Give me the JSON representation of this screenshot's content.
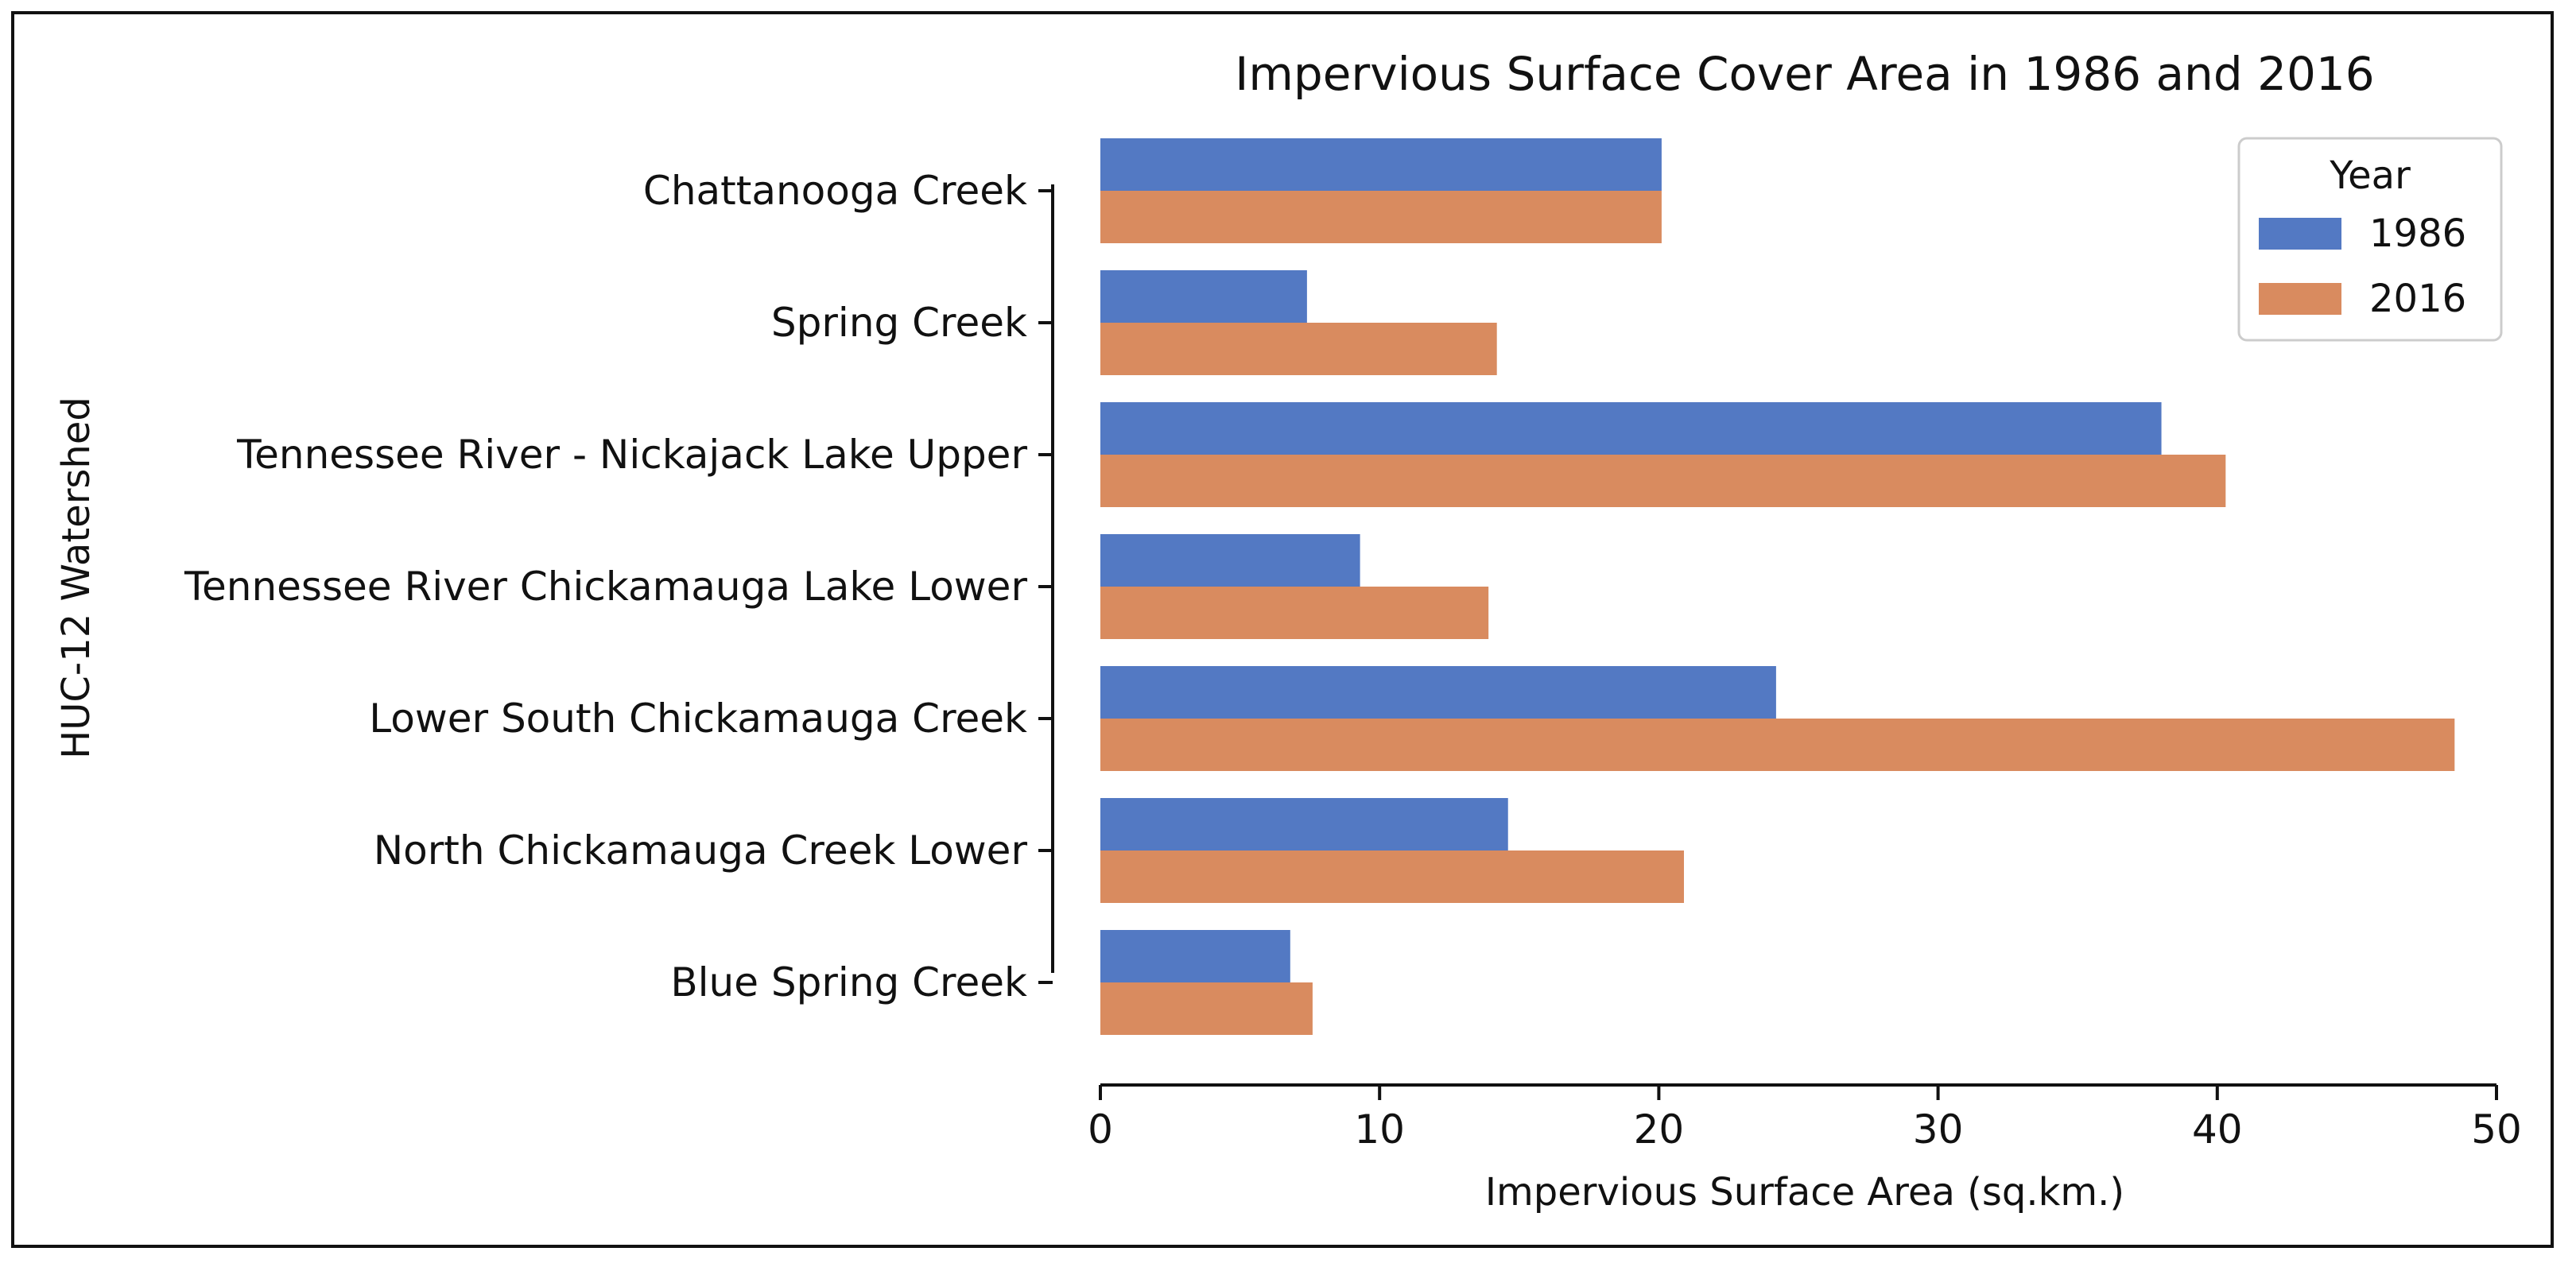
{
  "chart_data": {
    "type": "bar",
    "orientation": "horizontal",
    "title": "Impervious Surface Cover Area in 1986 and 2016",
    "xlabel": "Impervious Surface Area (sq.km.)",
    "ylabel": "HUC-12 Watershed",
    "xlim": [
      0,
      50
    ],
    "xticks": [
      0,
      10,
      20,
      30,
      40,
      50
    ],
    "categories": [
      "Chattanooga Creek",
      "Spring Creek",
      "Tennessee River - Nickajack Lake Upper",
      "Tennessee River Chickamauga Lake Lower",
      "Lower South Chickamauga Creek",
      "North Chickamauga Creek Lower",
      "Blue Spring Creek"
    ],
    "series": [
      {
        "name": "1986",
        "color": "#5379c3",
        "values": [
          20.1,
          7.4,
          38.0,
          9.3,
          24.2,
          14.6,
          6.8
        ]
      },
      {
        "name": "2016",
        "color": "#d98b5f",
        "values": [
          20.1,
          14.2,
          40.3,
          13.9,
          48.5,
          20.9,
          7.6
        ]
      }
    ],
    "legend": {
      "title": "Year",
      "position": "top-right"
    },
    "grid": false
  }
}
